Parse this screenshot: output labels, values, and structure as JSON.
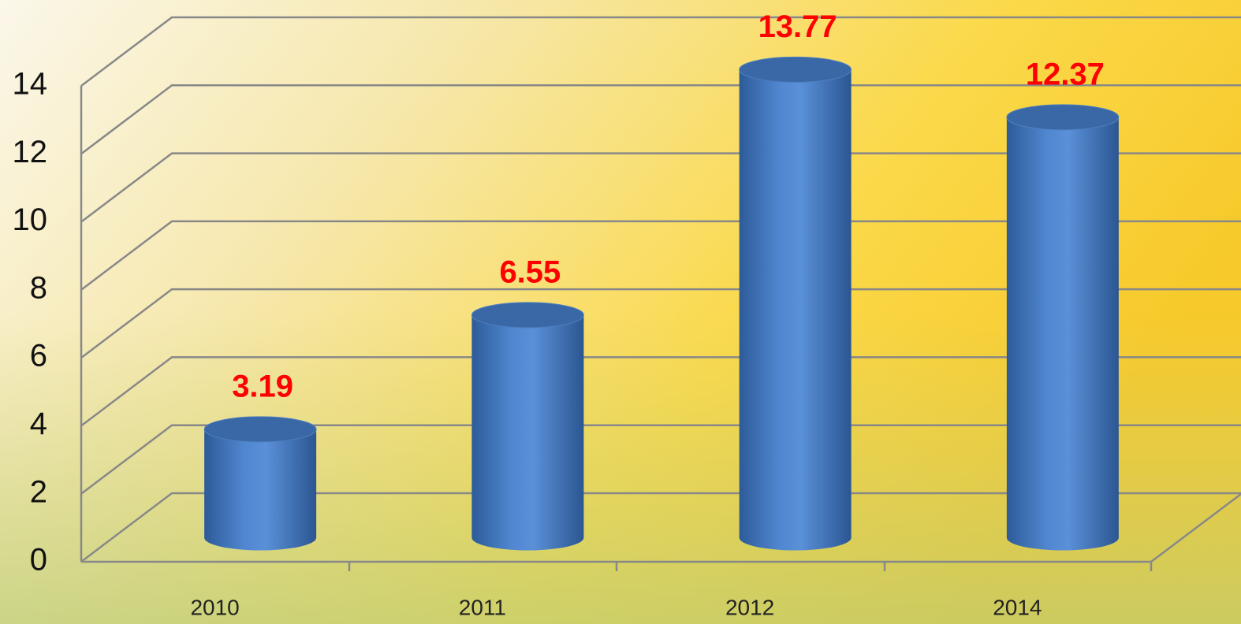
{
  "chart_data": {
    "type": "bar3d",
    "categories": [
      "2010",
      "2011",
      "2012",
      "2014"
    ],
    "values": [
      3.19,
      6.55,
      13.77,
      12.37
    ],
    "color": "#4a7ec4",
    "label_color": "#ff0000",
    "ylim": [
      0,
      14
    ],
    "yticks": [
      0,
      2,
      4,
      6,
      8,
      10,
      12,
      14
    ],
    "grid": true
  }
}
